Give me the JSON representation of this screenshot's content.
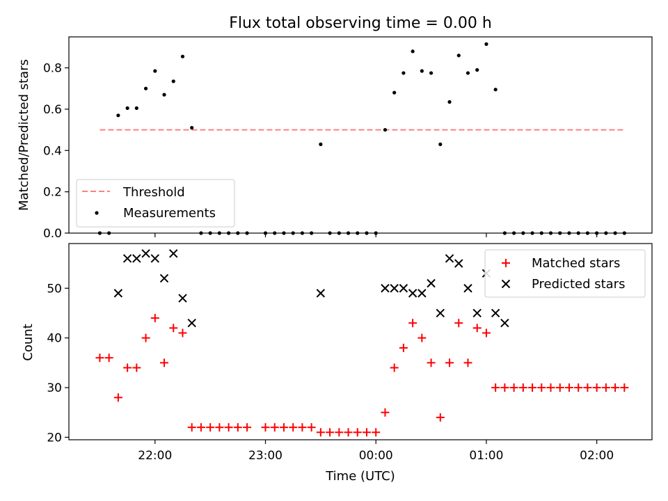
{
  "chart_data": [
    {
      "type": "scatter",
      "title": "Flux total observing time = 0.00 h",
      "xlabel": "",
      "ylabel": "Matched/Predicted stars",
      "ylim": [
        0,
        0.95
      ],
      "yticks": [
        "0.0",
        "0.2",
        "0.4",
        "0.6",
        "0.8"
      ],
      "ytick_values": [
        0.0,
        0.2,
        0.4,
        0.6,
        0.8
      ],
      "xticks": [
        "22:00",
        "23:00",
        "00:00",
        "01:00",
        "02:00"
      ],
      "xtick_labels_shown": false,
      "legend_position": "lower-left",
      "series": [
        {
          "name": "Threshold",
          "kind": "line",
          "style": "dashed",
          "color": "#ff7f7f",
          "x": [
            "21:30",
            "02:15"
          ],
          "y": [
            0.5,
            0.5
          ]
        },
        {
          "name": "Measurements",
          "kind": "scatter",
          "marker": "dot",
          "color": "#000000",
          "x": [
            "21:30",
            "21:35",
            "21:40",
            "21:45",
            "21:50",
            "21:55",
            "22:00",
            "22:05",
            "22:10",
            "22:15",
            "22:20",
            "22:25",
            "22:30",
            "22:35",
            "22:40",
            "22:45",
            "22:50",
            "23:00",
            "23:05",
            "23:10",
            "23:15",
            "23:20",
            "23:25",
            "23:30",
            "23:35",
            "23:40",
            "23:45",
            "23:50",
            "23:55",
            "00:00",
            "00:05",
            "00:10",
            "00:15",
            "00:20",
            "00:25",
            "00:30",
            "00:35",
            "00:40",
            "00:45",
            "00:50",
            "00:55",
            "01:00",
            "01:05",
            "01:10",
            "01:15",
            "01:20",
            "01:25",
            "01:30",
            "01:35",
            "01:40",
            "01:45",
            "01:50",
            "01:55",
            "02:00",
            "02:05",
            "02:10",
            "02:15"
          ],
          "y": [
            0.0,
            0.0,
            0.57,
            0.605,
            0.605,
            0.7,
            0.785,
            0.67,
            0.735,
            0.855,
            0.51,
            0.0,
            0.0,
            0.0,
            0.0,
            0.0,
            0.0,
            0.0,
            0.0,
            0.0,
            0.0,
            0.0,
            0.0,
            0.43,
            0.0,
            0.0,
            0.0,
            0.0,
            0.0,
            0.0,
            0.5,
            0.68,
            0.775,
            0.88,
            0.785,
            0.775,
            0.43,
            0.635,
            0.86,
            0.775,
            0.79,
            0.915,
            0.695,
            0.0,
            0.0,
            0.0,
            0.0,
            0.0,
            0.0,
            0.0,
            0.0,
            0.0,
            0.0,
            0.0,
            0.0,
            0.0,
            0.0
          ]
        }
      ]
    },
    {
      "type": "scatter",
      "title": "",
      "xlabel": "Time (UTC)",
      "ylabel": "Count",
      "ylim": [
        19.5,
        59
      ],
      "yticks": [
        "20",
        "30",
        "40",
        "50"
      ],
      "ytick_values": [
        20,
        30,
        40,
        50
      ],
      "xticks": [
        "22:00",
        "23:00",
        "00:00",
        "01:00",
        "02:00"
      ],
      "xtick_labels_shown": true,
      "legend_position": "upper-right",
      "series": [
        {
          "name": "Matched stars",
          "kind": "scatter",
          "marker": "plus",
          "color": "#ff0000",
          "x": [
            "21:30",
            "21:35",
            "21:40",
            "21:45",
            "21:50",
            "21:55",
            "22:00",
            "22:05",
            "22:10",
            "22:15",
            "22:20",
            "22:25",
            "22:30",
            "22:35",
            "22:40",
            "22:45",
            "22:50",
            "23:00",
            "23:05",
            "23:10",
            "23:15",
            "23:20",
            "23:25",
            "23:30",
            "23:35",
            "23:40",
            "23:45",
            "23:50",
            "23:55",
            "00:00",
            "00:05",
            "00:10",
            "00:15",
            "00:20",
            "00:25",
            "00:30",
            "00:35",
            "00:40",
            "00:45",
            "00:50",
            "00:55",
            "01:00",
            "01:05",
            "01:10",
            "01:15",
            "01:20",
            "01:25",
            "01:30",
            "01:35",
            "01:40",
            "01:45",
            "01:50",
            "01:55",
            "02:00",
            "02:05",
            "02:10",
            "02:15"
          ],
          "y": [
            36,
            36,
            28,
            34,
            34,
            40,
            44,
            35,
            42,
            41,
            22,
            22,
            22,
            22,
            22,
            22,
            22,
            22,
            22,
            22,
            22,
            22,
            22,
            21,
            21,
            21,
            21,
            21,
            21,
            21,
            25,
            34,
            38,
            43,
            40,
            35,
            24,
            35,
            43,
            35,
            42,
            41,
            30,
            30,
            30,
            30,
            30,
            30,
            30,
            30,
            30,
            30,
            30,
            30,
            30,
            30,
            30
          ]
        },
        {
          "name": "Predicted stars",
          "kind": "scatter",
          "marker": "x",
          "color": "#000000",
          "x": [
            "21:40",
            "21:45",
            "21:50",
            "21:55",
            "22:00",
            "22:05",
            "22:10",
            "22:15",
            "22:20",
            "23:30",
            "00:05",
            "00:10",
            "00:15",
            "00:20",
            "00:25",
            "00:30",
            "00:35",
            "00:40",
            "00:45",
            "00:50",
            "00:55",
            "01:00",
            "01:05",
            "01:10"
          ],
          "y": [
            49,
            56,
            56,
            57,
            56,
            52,
            57,
            48,
            43,
            49,
            50,
            50,
            50,
            49,
            49,
            51,
            45,
            56,
            55,
            50,
            45,
            53,
            45,
            43
          ]
        }
      ]
    }
  ]
}
